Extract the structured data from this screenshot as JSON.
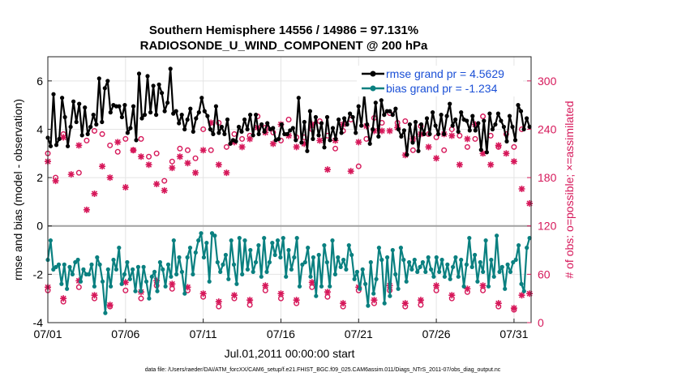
{
  "chart_data": {
    "type": "line",
    "title_line1": "Southern Hemisphere 14556 / 14986 = 97.131%",
    "title_line2": "RADIOSONDE_U_WIND_COMPONENT @ 200 hPa",
    "xlabel": "Jul.01,2011 00:00:00 start",
    "ylabel_left": "rmse and bias (model - observation)",
    "ylabel_right": "# of obs: o=possible; ×=assimilated",
    "footer": "data file: /Users/raeder/DAI/ATM_forcXX/CAM6_setup/f.e21.FHIST_BGC.f09_025.CAM6assim.011/Diags_NTrS_2011-07/obs_diag_output.nc",
    "x_ticks": [
      "07/01",
      "07/06",
      "07/11",
      "07/16",
      "07/21",
      "07/26",
      "07/31"
    ],
    "x_tick_days": [
      0,
      5,
      10,
      15,
      20,
      25,
      30
    ],
    "xlim": [
      0,
      31.1
    ],
    "ylim_left": [
      -4,
      7
    ],
    "y_ticks_left": [
      "-4",
      "-2",
      "0",
      "2",
      "4",
      "6"
    ],
    "ylim_right": [
      0,
      330
    ],
    "y_ticks_right": [
      "0",
      "60",
      "120",
      "180",
      "240",
      "300"
    ],
    "colors": {
      "rmse": "#000000",
      "bias": "#0a8080",
      "obs": "#d6185a",
      "zero": "#a0a0a0",
      "legend_text": "#1a4fd6"
    },
    "legend": [
      {
        "name": "rmse grand pr = 4.5629"
      },
      {
        "name": "bias grand pr = -1.234"
      }
    ],
    "series": [
      {
        "name": "rmse",
        "values": [
          3.65,
          3.3,
          5.45,
          3.35,
          3.6,
          5.3,
          4.5,
          3.3,
          4.1,
          5.15,
          4.3,
          5.05,
          3.75,
          4.9,
          3.8,
          4.1,
          4.6,
          4.2,
          6.1,
          4.3,
          5.7,
          6.0,
          4.7,
          5.0,
          4.95,
          4.95,
          4.5,
          5.0,
          3.85,
          4.05,
          4.95,
          3.55,
          6.3,
          4.45,
          4.6,
          6.2,
          4.7,
          5.8,
          4.6,
          5.85,
          5.5,
          4.75,
          5.1,
          6.5,
          4.65,
          4.75,
          4.25,
          4.6,
          4.0,
          4.4,
          4.85,
          3.9,
          4.45,
          4.7,
          5.3,
          4.75,
          4.55,
          4.0,
          3.8,
          4.95,
          3.85,
          4.1,
          3.8,
          4.4,
          3.4,
          3.55,
          3.5,
          4.1,
          3.9,
          4.4,
          4.0,
          4.6,
          3.75,
          4.6,
          3.8,
          4.2,
          3.9,
          4.25,
          4.0,
          4.05,
          3.55,
          3.6,
          4.2,
          3.8,
          3.8,
          3.95,
          4.05,
          3.55,
          5.3,
          3.45,
          4.3,
          3.1,
          4.75,
          3.6,
          4.5,
          3.75,
          4.25,
          3.25,
          4.5,
          3.55,
          4.05,
          3.6,
          4.4,
          3.85,
          4.45,
          4.2,
          4.65,
          4.5,
          3.85,
          4.95,
          4.15,
          5.45,
          4.2,
          3.4,
          4.0,
          5.1,
          3.7,
          5.2,
          4.6,
          4.75,
          4.75,
          4.6,
          4.85,
          4.0,
          3.7,
          3.95,
          2.95,
          4.2,
          3.45,
          4.3,
          3.1,
          4.2,
          3.8,
          4.45,
          3.8,
          4.7,
          4.15,
          3.8,
          4.6,
          3.8,
          4.55,
          5.05,
          4.15,
          4.4,
          3.9,
          4.7,
          4.4,
          4.35,
          3.95,
          4.55,
          3.95,
          4.25,
          3.15,
          4.35,
          3.05,
          4.65,
          4.0,
          4.2,
          4.65,
          4.35,
          4.1,
          3.5,
          4.55,
          4.1,
          3.55,
          5.0,
          4.75,
          4.0,
          4.45,
          4.1
        ]
      },
      {
        "name": "bias",
        "values": [
          -1.4,
          -0.6,
          -1.8,
          -1.7,
          -1.6,
          -2.4,
          -1.6,
          -2.6,
          -1.7,
          -2.0,
          -1.5,
          -1.4,
          -2.3,
          -1.8,
          -2.0,
          -2.0,
          -1.6,
          -2.5,
          -1.3,
          -1.6,
          -2.3,
          -3.6,
          -1.8,
          -2.5,
          -1.4,
          -1.8,
          -0.9,
          -2.4,
          -2.0,
          -1.5,
          -2.2,
          -1.8,
          -2.7,
          -1.7,
          -2.7,
          -1.7,
          -2.3,
          -3.0,
          -2.1,
          -1.9,
          -2.7,
          -1.5,
          -1.8,
          -2.5,
          -1.6,
          -2.1,
          -0.6,
          -2.0,
          -1.3,
          -1.9,
          -2.8,
          -1.3,
          -0.9,
          -2.0,
          -1.1,
          -0.6,
          -0.3,
          -1.3,
          -0.7,
          -2.3,
          -0.3,
          -0.4,
          -1.5,
          -1.9,
          -1.6,
          -1.2,
          -2.2,
          -0.6,
          -1.6,
          -2.4,
          -0.5,
          -2.0,
          -0.6,
          -1.8,
          -1.0,
          -1.9,
          -1.5,
          -0.8,
          -2.1,
          -0.5,
          -1.9,
          -1.5,
          -0.7,
          -1.2,
          -0.6,
          -1.3,
          -0.5,
          -2.1,
          -1.0,
          -1.8,
          -1.3,
          -0.5,
          -2.5,
          -1.6,
          -1.5,
          -0.9,
          -2.1,
          -1.3,
          -2.9,
          -1.2,
          -2.5,
          -0.8,
          -1.5,
          -2.5,
          -0.6,
          -2.0,
          -1.3,
          -1.7,
          -1.4,
          -1.8,
          -0.8,
          -1.2,
          -2.2,
          -1.9,
          -2.6,
          -1.8,
          -2.4,
          -3.3,
          -1.5,
          -2.8,
          -2.2,
          -0.9,
          -1.4,
          -3.2,
          -1.3,
          -2.9,
          -1.0,
          -2.0,
          -2.6,
          -0.9,
          -1.4,
          -2.3,
          -1.5,
          -1.8,
          -1.4,
          -1.9,
          -1.7,
          -1.5,
          -1.9,
          -1.3,
          -1.8,
          -2.1,
          -1.3,
          -1.9,
          -1.4,
          -2.1,
          -1.6,
          -2.2,
          -1.7,
          -1.3,
          -2.1,
          -1.4,
          -2.5,
          -1.6,
          -0.5,
          -1.7,
          -1.2,
          -2.3,
          -1.5,
          -1.9,
          -0.6,
          -2.5,
          -1.4,
          -2.1,
          -0.4,
          -1.9,
          -1.7,
          -2.6,
          -1.6,
          -1.9,
          -1.5,
          -1.4,
          -0.8,
          -2.4,
          -2.7,
          -0.9,
          -0.5
        ]
      },
      {
        "name": "obs_possible",
        "days": [
          0,
          0.5,
          1,
          2,
          2.5,
          3,
          3.5,
          4,
          4.5,
          5,
          5.5,
          6,
          6.5,
          7,
          7.5,
          8,
          8.5,
          9,
          9.5,
          10,
          10.5,
          11,
          11.5,
          12,
          12.5,
          13,
          13.5,
          14,
          14.5,
          15,
          15.5,
          16,
          16.5,
          17,
          17.5,
          18,
          18.5,
          19,
          19.5,
          20,
          20.5,
          21,
          21.5,
          22,
          22.5,
          23,
          23.5,
          24,
          24.5,
          25,
          25.5,
          26,
          26.5,
          27,
          27.5,
          28,
          28.5,
          29,
          29.5,
          30,
          30.5
        ],
        "values": [
          210,
          180,
          234,
          186,
          226,
          238,
          234,
          220,
          212,
          228,
          214,
          228,
          206,
          210,
          176,
          200,
          216,
          214,
          204,
          240,
          214,
          248,
          218,
          234,
          228,
          232,
          256,
          242,
          236,
          226,
          252,
          230,
          230,
          240,
          250,
          232,
          216,
          238,
          252,
          194,
          228,
          254,
          248,
          260,
          248,
          250,
          214,
          244,
          234,
          230,
          214,
          240,
          232,
          218,
          228,
          256,
          232,
          218,
          234,
          218,
          240
        ]
      },
      {
        "name": "obs_assimilated",
        "days": [
          0,
          0.5,
          1,
          1.5,
          2,
          2.5,
          3,
          3.5,
          4,
          4.5,
          5,
          5.5,
          6,
          6.5,
          7,
          7.5,
          8,
          8.5,
          9,
          9.5,
          10,
          10.5,
          11,
          11.5,
          12,
          12.5,
          13,
          13.5,
          14,
          14.5,
          15,
          15.5,
          16,
          16.5,
          17,
          17.5,
          18,
          18.5,
          19,
          19.5,
          20,
          20.5,
          21,
          21.5,
          22,
          22.5,
          23,
          23.5,
          24,
          24.5,
          25,
          25.5,
          26,
          26.5,
          27,
          27.5,
          28,
          28.5,
          29,
          29.5,
          30,
          30.5,
          31
        ],
        "values": [
          200,
          176,
          230,
          184,
          220,
          140,
          160,
          194,
          180,
          224,
          168,
          214,
          206,
          196,
          172,
          164,
          192,
          206,
          198,
          186,
          214,
          248,
          196,
          186,
          224,
          218,
          228,
          242,
          236,
          222,
          246,
          232,
          218,
          222,
          246,
          226,
          190,
          226,
          246,
          188,
          224,
          244,
          238,
          238,
          238,
          242,
          208,
          228,
          234,
          218,
          204,
          234,
          232,
          196,
          228,
          246,
          210,
          196,
          220,
          210,
          200,
          166,
          148
        ]
      },
      {
        "name": "obs_possible_low",
        "days": [
          0,
          1,
          2,
          3,
          4,
          5,
          6,
          7,
          8,
          9,
          10,
          11,
          12,
          13,
          14,
          15,
          16,
          17,
          18,
          19,
          20,
          21,
          22,
          23,
          24,
          25,
          26,
          27,
          28,
          29,
          30
        ],
        "values": [
          40,
          26,
          44,
          30,
          20,
          40,
          30,
          46,
          42,
          40,
          32,
          20,
          30,
          22,
          40,
          30,
          24,
          44,
          32,
          20,
          40,
          24,
          40,
          20,
          22,
          40,
          30,
          38,
          40,
          20,
          16
        ]
      },
      {
        "name": "obs_assimilated_low",
        "days": [
          0,
          1,
          2,
          3,
          4,
          5,
          6,
          7,
          8,
          9,
          10,
          11,
          12,
          13,
          14,
          15,
          16,
          17,
          18,
          19,
          20,
          21,
          22,
          23,
          24,
          25,
          26,
          27,
          28,
          29,
          30,
          30.5,
          31
        ],
        "values": [
          44,
          30,
          52,
          34,
          22,
          50,
          38,
          52,
          48,
          44,
          36,
          26,
          34,
          28,
          46,
          36,
          28,
          50,
          38,
          24,
          44,
          28,
          46,
          24,
          28,
          46,
          34,
          42,
          46,
          24,
          18,
          34,
          36
        ]
      }
    ]
  }
}
